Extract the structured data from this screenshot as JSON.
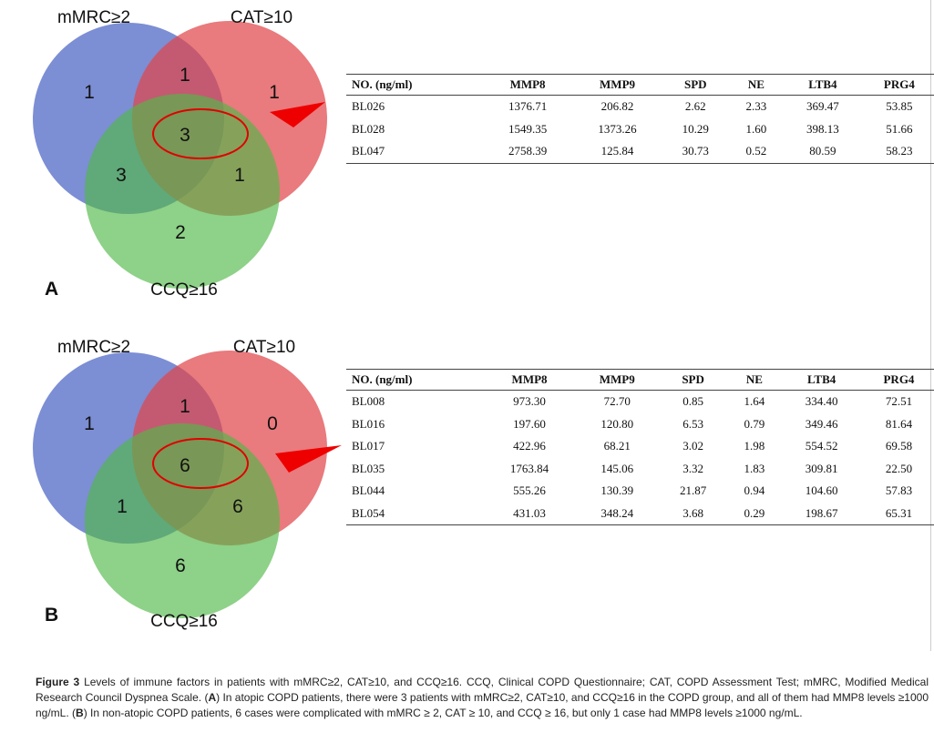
{
  "panels": [
    {
      "label": "A",
      "venn": {
        "set_labels": [
          "mMRC≥2",
          "CAT≥10",
          "CCQ≥16"
        ],
        "regions": {
          "mmrc_only": "1",
          "cat_only": "1",
          "ccq_only": "2",
          "mmrc_cat": "1",
          "mmrc_ccq": "3",
          "cat_ccq": "1",
          "all_three": "3"
        }
      },
      "table": {
        "headers": [
          "NO. (ng/ml)",
          "MMP8",
          "MMP9",
          "SPD",
          "NE",
          "LTB4",
          "PRG4"
        ],
        "rows": [
          [
            "BL026",
            "1376.71",
            "206.82",
            "2.62",
            "2.33",
            "369.47",
            "53.85"
          ],
          [
            "BL028",
            "1549.35",
            "1373.26",
            "10.29",
            "1.60",
            "398.13",
            "51.66"
          ],
          [
            "BL047",
            "2758.39",
            "125.84",
            "30.73",
            "0.52",
            "80.59",
            "58.23"
          ]
        ]
      }
    },
    {
      "label": "B",
      "venn": {
        "set_labels": [
          "mMRC≥2",
          "CAT≥10",
          "CCQ≥16"
        ],
        "regions": {
          "mmrc_only": "1",
          "cat_only": "0",
          "ccq_only": "6",
          "mmrc_cat": "1",
          "mmrc_ccq": "1",
          "cat_ccq": "6",
          "all_three": "6"
        }
      },
      "table": {
        "headers": [
          "NO. (ng/ml)",
          "MMP8",
          "MMP9",
          "SPD",
          "NE",
          "LTB4",
          "PRG4"
        ],
        "rows": [
          [
            "BL008",
            "973.30",
            "72.70",
            "0.85",
            "1.64",
            "334.40",
            "72.51"
          ],
          [
            "BL016",
            "197.60",
            "120.80",
            "6.53",
            "0.79",
            "349.46",
            "81.64"
          ],
          [
            "BL017",
            "422.96",
            "68.21",
            "3.02",
            "1.98",
            "554.52",
            "69.58"
          ],
          [
            "BL035",
            "1763.84",
            "145.06",
            "3.32",
            "1.83",
            "309.81",
            "22.50"
          ],
          [
            "BL044",
            "555.26",
            "130.39",
            "21.87",
            "0.94",
            "104.60",
            "57.83"
          ],
          [
            "BL054",
            "431.03",
            "348.24",
            "3.68",
            "0.29",
            "198.67",
            "65.31"
          ]
        ]
      }
    }
  ],
  "colors": {
    "mmrc_circle": "#4a62c4",
    "cat_circle": "#e0474b",
    "ccq_circle": "#52b848",
    "highlight": "#e00000"
  },
  "caption": {
    "figure_label": "Figure 3",
    "title": " Levels of immune factors in patients with mMRC≥2, CAT≥10, and CCQ≥16. CCQ, Clinical COPD Questionnaire; CAT, COPD Assessment Test; mMRC, Modified Medical Research Council Dyspnea Scale. (",
    "a_label": "A",
    "a_text": ") In atopic COPD patients, there were 3 patients with mMRC≥2, CAT≥10, and CCQ≥16 in the COPD group, and all of them had MMP8 levels ≥1000 ng/mL. (",
    "b_label": "B",
    "b_text": ") In non-atopic COPD patients, 6 cases were complicated with mMRC ≥ 2, CAT ≥ 10, and CCQ ≥ 16, but only 1 case had MMP8 levels ≥1000 ng/mL."
  }
}
